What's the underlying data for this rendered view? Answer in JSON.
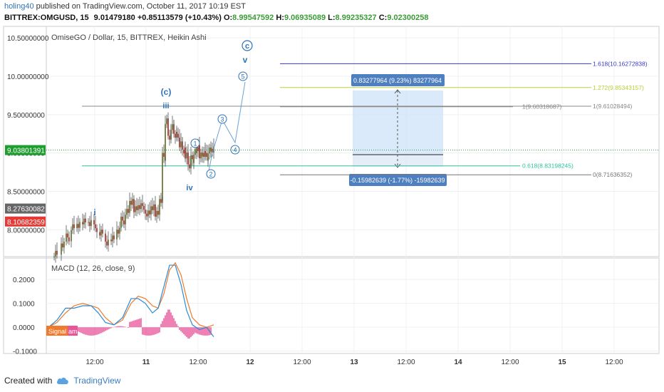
{
  "header": {
    "username": "holing40",
    "published_text": "published on TradingView.com, October 11, 2017 10:19 EST",
    "ohlc_line": {
      "symbol": "BITTREX:OMGUSD, 15",
      "last": "9.01479180",
      "change": "+0.85113579 (+10.43%)",
      "open_label": "O:",
      "open": "8.99547592",
      "high_label": "H:",
      "high": "9.06935089",
      "low_label": "L:",
      "low": "8.99235327",
      "close_label": "C:",
      "close": "9.02300258"
    }
  },
  "footer": {
    "created_with": "Created with",
    "brand": "TradingView"
  },
  "colors": {
    "up": "#6b7a3a",
    "down": "#b03a3a",
    "price_badge": "#1e9e2e",
    "red_badge": "#e53935",
    "macd": "#2a8bd6",
    "signal": "#f07a2a",
    "hist": "#e8559a"
  },
  "chart_data": [
    {
      "type": "candlestick",
      "title": "OmiseGO / Dollar, 15, BITTREX, Heikin Ashi",
      "ylim": [
        7.65,
        10.65
      ],
      "y_ticks": [
        "10.50000000",
        "10.00000000",
        "9.50000000",
        "9.00000000",
        "8.50000000",
        "8.00000000"
      ],
      "y_tick_values": [
        10.5,
        10.0,
        9.5,
        9.0,
        8.5,
        8.0
      ],
      "x_ticks": [
        "12:00",
        "11",
        "12:00",
        "12",
        "12:00",
        "13",
        "12:00",
        "14",
        "12:00",
        "15",
        "12:00"
      ],
      "current_price_label": "9.03801391",
      "current_price": 9.038,
      "gray_badge_label": "8.27630082",
      "gray_badge": 8.276,
      "red_badge_label": "8.10682359",
      "red_badge": 8.107,
      "wave_labels": [
        "i",
        "(c)",
        "iii",
        "iv",
        "c",
        "v",
        "1",
        "2",
        "3",
        "4",
        "5"
      ],
      "fib_levels": [
        {
          "label": "1.618(10.16272838)",
          "value": 10.163,
          "color": "#3a3ac8"
        },
        {
          "label": "1.272(9.85343157)",
          "value": 9.853,
          "color": "#b8d03a"
        },
        {
          "label": "1(9.60318687)",
          "value": 9.603,
          "color": "#888888"
        },
        {
          "label": "1(9.61028494)",
          "value": 9.61,
          "color": "#888888"
        },
        {
          "label": "0.618(8.83198245)",
          "value": 8.832,
          "color": "#2fc29a"
        },
        {
          "label": "0(8.71636352)",
          "value": 8.716,
          "color": "#777777"
        }
      ],
      "measure_up": "0.83277964 (9.23%) 83277964",
      "measure_down": "-0.15982639 (-1.77%) -15982639"
    },
    {
      "type": "line",
      "title": "MACD (12, 26, close, 9)",
      "ylim": [
        -0.11,
        0.29
      ],
      "y_ticks": [
        "0.2000",
        "0.1000",
        "0.0000",
        "-0.1000"
      ],
      "y_tick_values": [
        0.2,
        0.1,
        0.0,
        -0.1
      ],
      "series": [
        {
          "name": "Signal"
        },
        {
          "name": "Histogram"
        }
      ],
      "legend_labels": [
        "Signal",
        "am"
      ]
    }
  ]
}
